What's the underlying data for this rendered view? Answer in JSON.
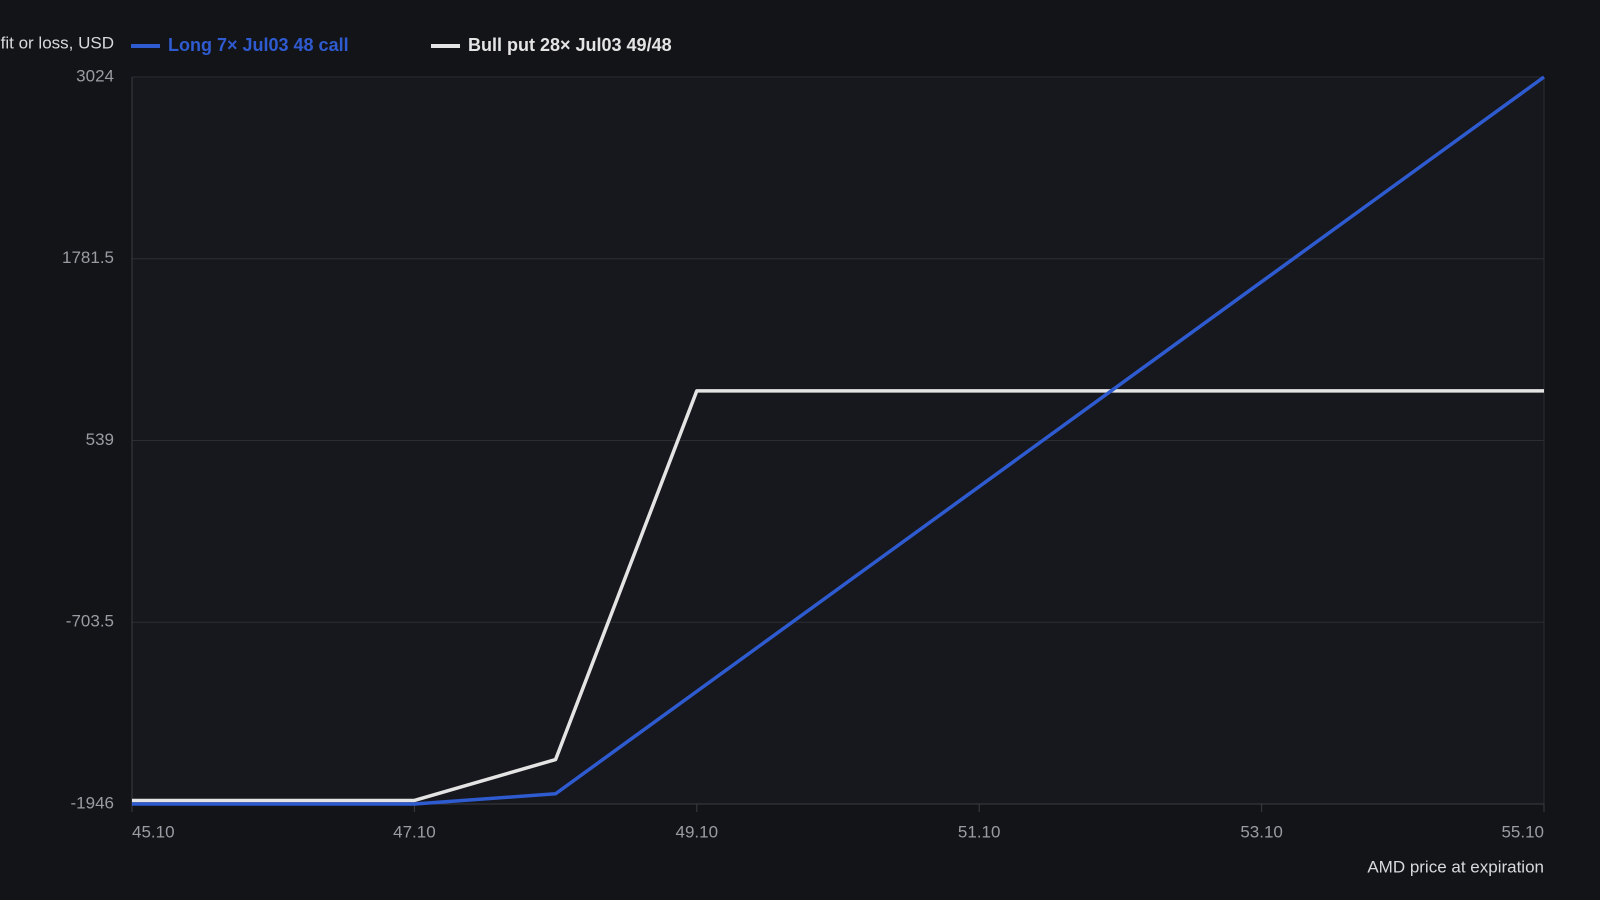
{
  "chart_data": {
    "type": "line",
    "y_label": "Profit or loss, USD",
    "x_label": "AMD price at expiration",
    "x": [
      45.1,
      47.1,
      48.1,
      49.1,
      55.1
    ],
    "series": [
      {
        "name": "Long 7× Jul03 48 call",
        "color": "#2f5bd0",
        "values": [
          -1946,
          -1946,
          -1876,
          -1176,
          3024
        ]
      },
      {
        "name": "Bull put 28× Jul03 49/48",
        "color": "#e4e4e4",
        "values": [
          -1922,
          -1922,
          -1642,
          878,
          878
        ]
      }
    ],
    "xlim": [
      45.1,
      55.1
    ],
    "xticks": [
      {
        "value": 45.1,
        "label": "45.10"
      },
      {
        "value": 47.1,
        "label": "47.10"
      },
      {
        "value": 49.1,
        "label": "49.10"
      },
      {
        "value": 51.1,
        "label": "51.10"
      },
      {
        "value": 53.1,
        "label": "53.10"
      },
      {
        "value": 55.1,
        "label": "55.10"
      }
    ],
    "ylim": [
      -1946,
      3024
    ],
    "yticks": [
      -1946,
      -703.5,
      539,
      1781.5,
      3024
    ],
    "grid": true
  }
}
